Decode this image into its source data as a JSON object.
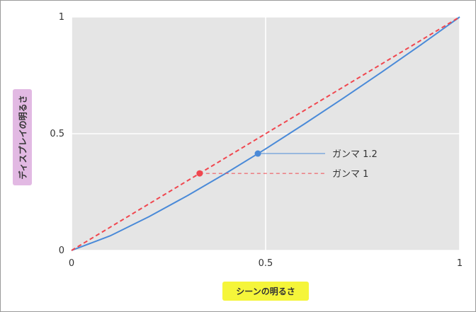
{
  "chart_data": {
    "type": "line",
    "xlabel": "シーンの明るさ",
    "ylabel": "ディスプレイの明るさ",
    "xlim": [
      0,
      1
    ],
    "ylim": [
      0,
      1
    ],
    "x_ticks": [
      "0",
      "0.5",
      "1"
    ],
    "y_ticks": [
      "0",
      "0.5",
      "1"
    ],
    "grid": true,
    "series": [
      {
        "name": "ガンマ 1.2",
        "style": "solid",
        "color": "#4a8ad8",
        "x": [
          0,
          0.1,
          0.2,
          0.3,
          0.4,
          0.5,
          0.6,
          0.7,
          0.8,
          0.9,
          1
        ],
        "y": [
          0,
          0.063,
          0.145,
          0.236,
          0.333,
          0.435,
          0.542,
          0.652,
          0.765,
          0.881,
          1
        ],
        "marker": {
          "x": 0.48,
          "y": 0.415
        }
      },
      {
        "name": "ガンマ 1",
        "style": "dashed",
        "color": "#f0474f",
        "x": [
          0,
          1
        ],
        "y": [
          0,
          1
        ],
        "marker": {
          "x": 0.33,
          "y": 0.33
        }
      }
    ]
  }
}
